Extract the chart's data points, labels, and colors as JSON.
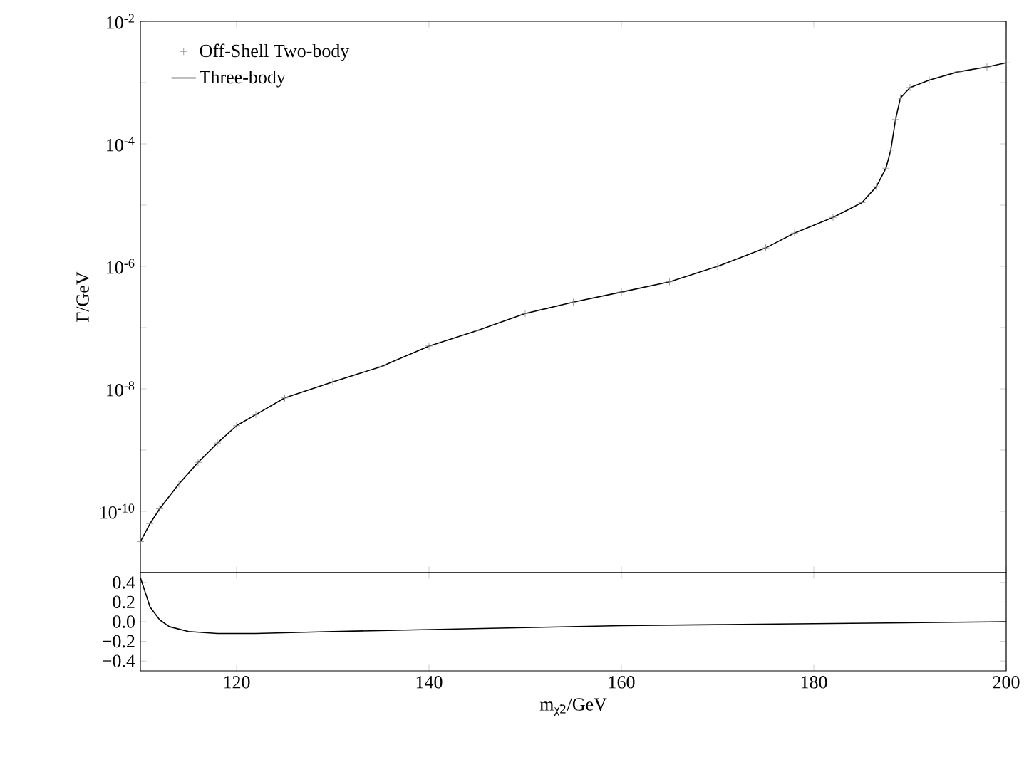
{
  "chart_data": [
    {
      "type": "line",
      "ylabel": "Γ/GeV",
      "log": "y",
      "legend": "top left",
      "tick_labels": "y",
      "x": [
        110,
        111,
        112,
        114,
        116,
        118,
        120,
        122,
        125,
        130,
        135,
        140,
        145,
        150,
        155,
        160,
        165,
        170,
        175,
        178,
        182,
        185,
        186.5,
        187.5,
        188,
        188.5,
        189,
        190,
        192,
        195,
        198,
        200
      ],
      "xlim": [
        110,
        200
      ],
      "xticks": [
        120,
        140,
        160,
        180,
        200
      ],
      "ylim": [
        1e-11,
        0.01
      ],
      "yticks": [
        {
          "value": 0.01,
          "label": "10$^{-2}$"
        },
        {
          "value": 0.001,
          "label": null
        },
        {
          "value": 0.0001,
          "label": "10$^{-4}$"
        },
        {
          "value": 1e-05,
          "label": null
        },
        {
          "value": 1e-06,
          "label": "10$^{-6}$"
        },
        {
          "value": 1e-07,
          "label": null
        },
        {
          "value": 1e-08,
          "label": "10$^{-8}$"
        },
        {
          "value": 1e-09,
          "label": null
        },
        {
          "value": 1e-10,
          "label": "10$^{-10}$"
        }
      ],
      "series": [
        {
          "name": "Off-Shell Two-body",
          "type": "scatter",
          "marker": "cross",
          "color": "#888888",
          "values": [
            3.2e-11,
            6.3e-11,
            1.1e-10,
            2.8e-10,
            6.3e-10,
            1.3e-09,
            2.5e-09,
            3.8e-09,
            7.1e-09,
            1.3e-08,
            2.3e-08,
            5e-08,
            8.9e-08,
            1.7e-07,
            2.6e-07,
            3.8e-07,
            5.6e-07,
            1e-06,
            2e-06,
            3.5e-06,
            6.3e-06,
            1.1e-05,
            2e-05,
            4e-05,
            7.9e-05,
            0.00025,
            0.00056,
            0.00083,
            0.0011,
            0.0015,
            0.0018,
            0.0021
          ]
        },
        {
          "name": "Three-body",
          "type": "line",
          "color": "#000000",
          "values": [
            3.2e-11,
            6.3e-11,
            1.1e-10,
            2.8e-10,
            6.3e-10,
            1.3e-09,
            2.5e-09,
            3.8e-09,
            7.1e-09,
            1.3e-08,
            2.3e-08,
            5e-08,
            8.9e-08,
            1.7e-07,
            2.6e-07,
            3.8e-07,
            5.6e-07,
            1e-06,
            2e-06,
            3.5e-06,
            6.3e-06,
            1.1e-05,
            2e-05,
            4e-05,
            7.9e-05,
            0.00025,
            0.00056,
            0.00083,
            0.0011,
            0.0015,
            0.0018,
            0.0021
          ]
        }
      ]
    },
    {
      "type": "line",
      "xlabel": "m$_{χ̃2}$/GeV",
      "x": [
        110,
        110.5,
        111,
        112,
        113,
        115,
        118,
        122,
        130,
        140,
        150,
        160,
        170,
        180,
        190,
        200
      ],
      "xlim": [
        110,
        200
      ],
      "xticks": [
        120,
        140,
        160,
        180,
        200
      ],
      "ylim": [
        -0.5,
        0.5
      ],
      "yticks": [
        {
          "value": 0.4,
          "label": "0.4"
        },
        {
          "value": 0.2,
          "label": "0.2"
        },
        {
          "value": 0,
          "label": "0.0"
        },
        {
          "value": -0.2,
          "label": "−0.2"
        },
        {
          "value": -0.4,
          "label": "−0.4"
        }
      ],
      "series": [
        {
          "color": "#000000",
          "values": [
            0.45,
            0.3,
            0.15,
            0.02,
            -0.05,
            -0.1,
            -0.12,
            -0.12,
            -0.1,
            -0.08,
            -0.06,
            -0.04,
            -0.03,
            -0.02,
            -0.01,
            0.0
          ]
        }
      ]
    }
  ]
}
